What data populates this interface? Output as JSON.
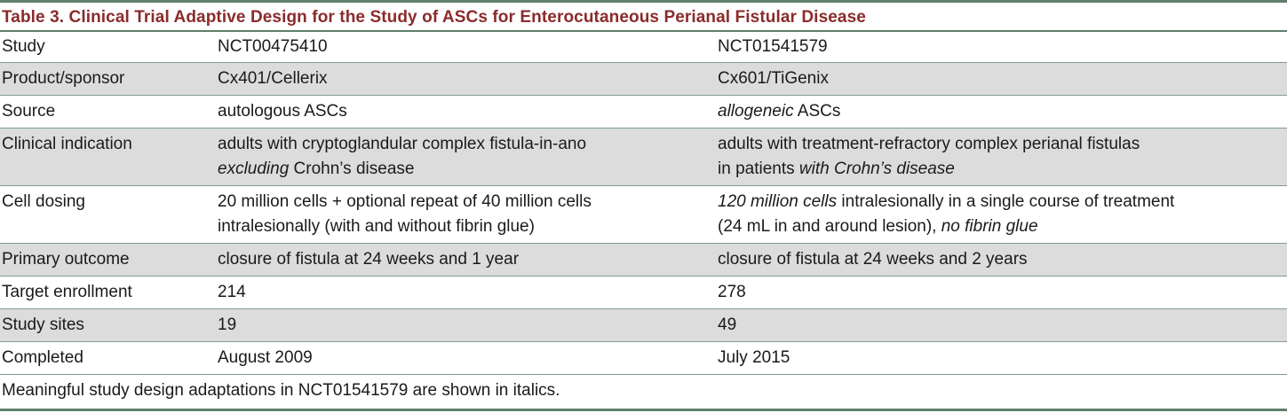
{
  "table": {
    "title": "Table 3. Clinical Trial Adaptive Design for the Study of ASCs for Enterocutaneous Perianal Fistular Disease",
    "header": {
      "label": "Study",
      "col_a": "NCT00475410",
      "col_b": "NCT01541579"
    },
    "rows": {
      "product": {
        "label": "Product/sponsor",
        "a": "Cx401/Cellerix",
        "b": "Cx601/TiGenix"
      },
      "source": {
        "label": "Source",
        "a": "autologous ASCs",
        "b_italic": "allogeneic",
        "b_rest": " ASCs"
      },
      "indication": {
        "label": "Clinical indication",
        "a_line1": "adults with cryptoglandular complex fistula-in-ano",
        "a_line2_italic": "excluding",
        "a_line2_rest": " Crohn’s disease",
        "b_line1": "adults with treatment-refractory complex perianal fistulas",
        "b_line2_pre": "in patients ",
        "b_line2_italic": "with Crohn’s disease"
      },
      "dosing": {
        "label": "Cell dosing",
        "a_line1": "20 million cells + optional repeat of 40 million cells",
        "a_line2": "intralesionally (with and without fibrin glue)",
        "b_line1_italic": "120 million cells",
        "b_line1_rest": " intralesionally in a single course of treatment",
        "b_line2_pre": "(24 mL in and around lesion), ",
        "b_line2_italic": "no fibrin glue"
      },
      "outcome": {
        "label": "Primary outcome",
        "a": "closure of fistula at 24 weeks and 1 year",
        "b": "closure of fistula at 24 weeks and 2 years"
      },
      "enrollment": {
        "label": "Target enrollment",
        "a": "214",
        "b": "278"
      },
      "sites": {
        "label": "Study sites",
        "a": "19",
        "b": "49"
      },
      "completed": {
        "label": "Completed",
        "a": "August 2009",
        "b": "July 2015"
      }
    },
    "footnote": "Meaningful study design adaptations in NCT01541579 are shown in italics."
  }
}
